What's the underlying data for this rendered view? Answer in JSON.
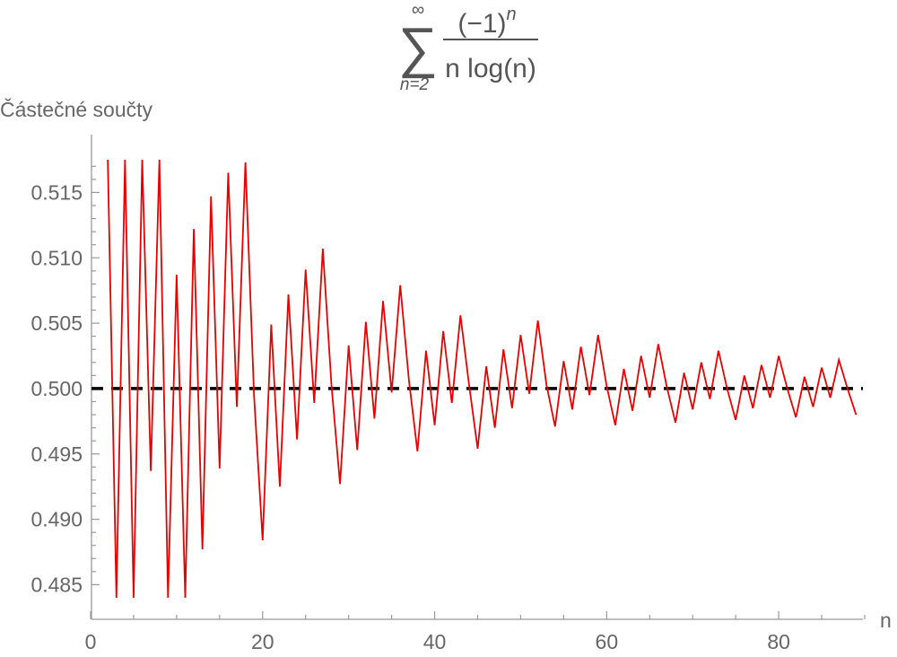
{
  "chart_data": {
    "type": "line",
    "title": {
      "sum_symbol": "∑",
      "upper_limit": "∞",
      "lower_limit": "n=2",
      "numerator_base": "(−1)",
      "numerator_exponent": "n",
      "denominator": "n log(n)"
    },
    "xlabel": "n",
    "ylabel": "Částečné součty",
    "xlim": [
      0,
      90
    ],
    "ylim": [
      0.484,
      0.5175
    ],
    "x_ticks": [
      0,
      20,
      40,
      60,
      80
    ],
    "x_tick_labels": [
      "0",
      "20",
      "40",
      "60",
      "80"
    ],
    "y_ticks": [
      0.485,
      0.49,
      0.495,
      0.5,
      0.505,
      0.51,
      0.515
    ],
    "y_tick_labels": [
      "0.485",
      "0.490",
      "0.495",
      "0.500",
      "0.505",
      "0.510",
      "0.515"
    ],
    "reference_line": {
      "y": 0.5,
      "style": "dashed",
      "color": "#000000"
    },
    "series": [
      {
        "color": "#e60000",
        "x": [
          2,
          3,
          4,
          5,
          6,
          7,
          8,
          9,
          10,
          11,
          12,
          13,
          14,
          15,
          16,
          17,
          18,
          19,
          20,
          21,
          22,
          23,
          24,
          25,
          26,
          27,
          28,
          29,
          30,
          31,
          32,
          33,
          34,
          35,
          36,
          37,
          38,
          39,
          40,
          41,
          42,
          43,
          44,
          45,
          46,
          47,
          48,
          49,
          50,
          51,
          52,
          53,
          54,
          55,
          56,
          57,
          58,
          59,
          60,
          61,
          62,
          63,
          64,
          65,
          66,
          67,
          68,
          69,
          70,
          71,
          72,
          73,
          74,
          75,
          76,
          77,
          78,
          79,
          80,
          81,
          82,
          83,
          84,
          85,
          86,
          87,
          88,
          89
        ],
        "values": [
          0.5175,
          0.484,
          0.5175,
          0.484,
          0.5175,
          0.4937,
          0.5175,
          0.484,
          0.5087,
          0.484,
          0.5122,
          0.4877,
          0.5147,
          0.4939,
          0.5165,
          0.4986,
          0.5173,
          0.4995,
          0.4884,
          0.5049,
          0.4925,
          0.5072,
          0.4961,
          0.5091,
          0.4989,
          0.5107,
          0.5003,
          0.4927,
          0.5033,
          0.4953,
          0.5051,
          0.4977,
          0.5067,
          0.4997,
          0.5079,
          0.5007,
          0.4952,
          0.5029,
          0.4972,
          0.5044,
          0.4989,
          0.5056,
          0.5003,
          0.4954,
          0.5017,
          0.497,
          0.503,
          0.4985,
          0.5041,
          0.4996,
          0.5052,
          0.5003,
          0.4971,
          0.5021,
          0.4984,
          0.5032,
          0.4995,
          0.5041,
          0.5002,
          0.4972,
          0.5015,
          0.4983,
          0.5025,
          0.4993,
          0.5034,
          0.5001,
          0.4974,
          0.5012,
          0.4984,
          0.502,
          0.4992,
          0.5029,
          0.5,
          0.4976,
          0.501,
          0.4985,
          0.5018,
          0.4993,
          0.5025,
          0.5,
          0.4978,
          0.5009,
          0.4986,
          0.5016,
          0.4993,
          0.5022,
          0.5,
          0.498
        ]
      }
    ]
  }
}
